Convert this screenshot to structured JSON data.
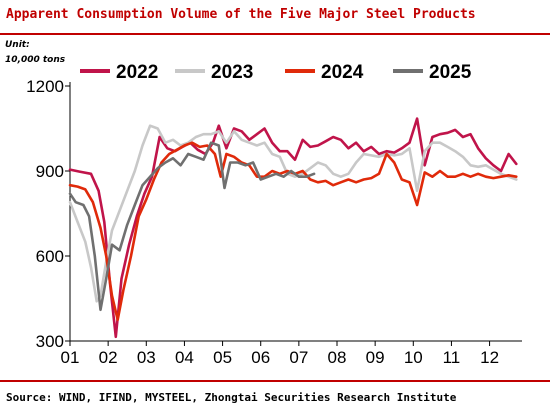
{
  "page": {
    "title": "Apparent Consumption Volume of the Five Major Steel Products",
    "unit_line1": "Unit:",
    "unit_line2": "10,000 tons",
    "source": "Source: WIND, IFIND, MYSTEEL, Zhongtai Securities Research Institute"
  },
  "chart_data": {
    "type": "line",
    "title": "Apparent Consumption Volume of the Five Major Steel Products",
    "xlabel": "",
    "ylabel": "Unit: 10,000 tons",
    "x_ticks": [
      "01",
      "02",
      "03",
      "04",
      "05",
      "06",
      "07",
      "08",
      "09",
      "10",
      "11",
      "12"
    ],
    "y_ticks": [
      300,
      600,
      900,
      1200
    ],
    "ylim": [
      300,
      1200
    ],
    "x_range": [
      1,
      12.85
    ],
    "grid": false,
    "legend_position": "top",
    "series": [
      {
        "name": "2022",
        "color": "#c0144a",
        "points": [
          [
            1.0,
            905
          ],
          [
            1.25,
            898
          ],
          [
            1.55,
            890
          ],
          [
            1.75,
            830
          ],
          [
            1.9,
            720
          ],
          [
            2.05,
            500
          ],
          [
            2.2,
            315
          ],
          [
            2.35,
            520
          ],
          [
            2.55,
            640
          ],
          [
            2.75,
            740
          ],
          [
            2.95,
            820
          ],
          [
            3.15,
            880
          ],
          [
            3.35,
            1020
          ],
          [
            3.55,
            980
          ],
          [
            3.75,
            970
          ],
          [
            3.95,
            985
          ],
          [
            4.15,
            1000
          ],
          [
            4.35,
            975
          ],
          [
            4.55,
            960
          ],
          [
            4.75,
            1000
          ],
          [
            4.9,
            1060
          ],
          [
            5.1,
            980
          ],
          [
            5.3,
            1050
          ],
          [
            5.5,
            1040
          ],
          [
            5.7,
            1010
          ],
          [
            5.9,
            1030
          ],
          [
            6.1,
            1050
          ],
          [
            6.3,
            1000
          ],
          [
            6.5,
            970
          ],
          [
            6.7,
            970
          ],
          [
            6.9,
            940
          ],
          [
            7.1,
            1010
          ],
          [
            7.3,
            985
          ],
          [
            7.5,
            990
          ],
          [
            7.7,
            1005
          ],
          [
            7.9,
            1020
          ],
          [
            8.1,
            1010
          ],
          [
            8.3,
            980
          ],
          [
            8.5,
            1000
          ],
          [
            8.7,
            970
          ],
          [
            8.9,
            985
          ],
          [
            9.1,
            960
          ],
          [
            9.3,
            970
          ],
          [
            9.5,
            965
          ],
          [
            9.7,
            980
          ],
          [
            9.9,
            1000
          ],
          [
            10.1,
            1085
          ],
          [
            10.3,
            920
          ],
          [
            10.5,
            1020
          ],
          [
            10.7,
            1030
          ],
          [
            10.9,
            1035
          ],
          [
            11.1,
            1045
          ],
          [
            11.3,
            1020
          ],
          [
            11.5,
            1030
          ],
          [
            11.7,
            980
          ],
          [
            11.9,
            945
          ],
          [
            12.1,
            920
          ],
          [
            12.3,
            900
          ],
          [
            12.5,
            960
          ],
          [
            12.7,
            925
          ]
        ]
      },
      {
        "name": "2023",
        "color": "#c8c8c8",
        "points": [
          [
            1.0,
            790
          ],
          [
            1.2,
            720
          ],
          [
            1.4,
            650
          ],
          [
            1.55,
            560
          ],
          [
            1.7,
            440
          ],
          [
            1.8,
            460
          ],
          [
            1.95,
            580
          ],
          [
            2.1,
            690
          ],
          [
            2.3,
            760
          ],
          [
            2.5,
            830
          ],
          [
            2.7,
            900
          ],
          [
            2.9,
            990
          ],
          [
            3.1,
            1060
          ],
          [
            3.3,
            1050
          ],
          [
            3.5,
            1000
          ],
          [
            3.7,
            1010
          ],
          [
            3.9,
            990
          ],
          [
            4.1,
            1000
          ],
          [
            4.3,
            1020
          ],
          [
            4.5,
            1030
          ],
          [
            4.7,
            1030
          ],
          [
            4.9,
            1040
          ],
          [
            5.1,
            1000
          ],
          [
            5.3,
            1040
          ],
          [
            5.5,
            1010
          ],
          [
            5.7,
            1000
          ],
          [
            5.9,
            990
          ],
          [
            6.1,
            1000
          ],
          [
            6.3,
            960
          ],
          [
            6.5,
            950
          ],
          [
            6.7,
            890
          ],
          [
            6.9,
            880
          ],
          [
            7.1,
            890
          ],
          [
            7.3,
            910
          ],
          [
            7.5,
            930
          ],
          [
            7.7,
            920
          ],
          [
            7.9,
            890
          ],
          [
            8.1,
            880
          ],
          [
            8.3,
            890
          ],
          [
            8.5,
            930
          ],
          [
            8.7,
            960
          ],
          [
            8.9,
            955
          ],
          [
            9.1,
            950
          ],
          [
            9.3,
            960
          ],
          [
            9.5,
            955
          ],
          [
            9.7,
            960
          ],
          [
            9.9,
            980
          ],
          [
            10.1,
            830
          ],
          [
            10.3,
            970
          ],
          [
            10.5,
            1000
          ],
          [
            10.7,
            1000
          ],
          [
            10.9,
            985
          ],
          [
            11.1,
            970
          ],
          [
            11.3,
            950
          ],
          [
            11.5,
            920
          ],
          [
            11.7,
            915
          ],
          [
            11.9,
            920
          ],
          [
            12.1,
            905
          ],
          [
            12.3,
            890
          ],
          [
            12.5,
            880
          ],
          [
            12.7,
            870
          ]
        ]
      },
      {
        "name": "2024",
        "color": "#e02a0a",
        "points": [
          [
            1.0,
            850
          ],
          [
            1.2,
            845
          ],
          [
            1.4,
            835
          ],
          [
            1.6,
            790
          ],
          [
            1.8,
            700
          ],
          [
            1.95,
            600
          ],
          [
            2.1,
            460
          ],
          [
            2.25,
            375
          ],
          [
            2.4,
            480
          ],
          [
            2.6,
            600
          ],
          [
            2.8,
            740
          ],
          [
            3.0,
            800
          ],
          [
            3.2,
            870
          ],
          [
            3.4,
            930
          ],
          [
            3.6,
            960
          ],
          [
            3.8,
            975
          ],
          [
            4.0,
            990
          ],
          [
            4.2,
            1000
          ],
          [
            4.4,
            985
          ],
          [
            4.6,
            990
          ],
          [
            4.8,
            960
          ],
          [
            4.95,
            880
          ],
          [
            5.1,
            960
          ],
          [
            5.3,
            950
          ],
          [
            5.5,
            930
          ],
          [
            5.7,
            920
          ],
          [
            5.9,
            880
          ],
          [
            6.1,
            880
          ],
          [
            6.3,
            900
          ],
          [
            6.5,
            890
          ],
          [
            6.7,
            900
          ],
          [
            6.9,
            890
          ],
          [
            7.1,
            900
          ],
          [
            7.3,
            870
          ],
          [
            7.5,
            860
          ],
          [
            7.7,
            865
          ],
          [
            7.9,
            850
          ],
          [
            8.1,
            860
          ],
          [
            8.3,
            870
          ],
          [
            8.5,
            860
          ],
          [
            8.7,
            870
          ],
          [
            8.9,
            875
          ],
          [
            9.1,
            890
          ],
          [
            9.3,
            960
          ],
          [
            9.5,
            930
          ],
          [
            9.7,
            870
          ],
          [
            9.9,
            860
          ],
          [
            10.1,
            780
          ],
          [
            10.3,
            895
          ],
          [
            10.5,
            880
          ],
          [
            10.7,
            900
          ],
          [
            10.9,
            880
          ],
          [
            11.1,
            880
          ],
          [
            11.3,
            890
          ],
          [
            11.5,
            880
          ],
          [
            11.7,
            890
          ],
          [
            11.9,
            880
          ],
          [
            12.1,
            875
          ],
          [
            12.3,
            880
          ],
          [
            12.5,
            885
          ],
          [
            12.7,
            880
          ]
        ]
      },
      {
        "name": "2025",
        "color": "#707070",
        "points": [
          [
            1.0,
            820
          ],
          [
            1.15,
            790
          ],
          [
            1.35,
            780
          ],
          [
            1.5,
            740
          ],
          [
            1.65,
            600
          ],
          [
            1.8,
            410
          ],
          [
            1.95,
            520
          ],
          [
            2.1,
            640
          ],
          [
            2.3,
            620
          ],
          [
            2.5,
            710
          ],
          [
            2.7,
            780
          ],
          [
            2.9,
            850
          ],
          [
            3.1,
            880
          ],
          [
            3.3,
            910
          ],
          [
            3.5,
            930
          ],
          [
            3.7,
            945
          ],
          [
            3.9,
            920
          ],
          [
            4.1,
            960
          ],
          [
            4.3,
            950
          ],
          [
            4.5,
            940
          ],
          [
            4.7,
            1000
          ],
          [
            4.9,
            990
          ],
          [
            5.05,
            840
          ],
          [
            5.2,
            930
          ],
          [
            5.4,
            930
          ],
          [
            5.6,
            920
          ],
          [
            5.8,
            930
          ],
          [
            6.0,
            870
          ],
          [
            6.2,
            880
          ],
          [
            6.4,
            890
          ],
          [
            6.6,
            880
          ],
          [
            6.8,
            900
          ],
          [
            7.0,
            880
          ],
          [
            7.2,
            880
          ],
          [
            7.4,
            890
          ]
        ]
      }
    ]
  }
}
